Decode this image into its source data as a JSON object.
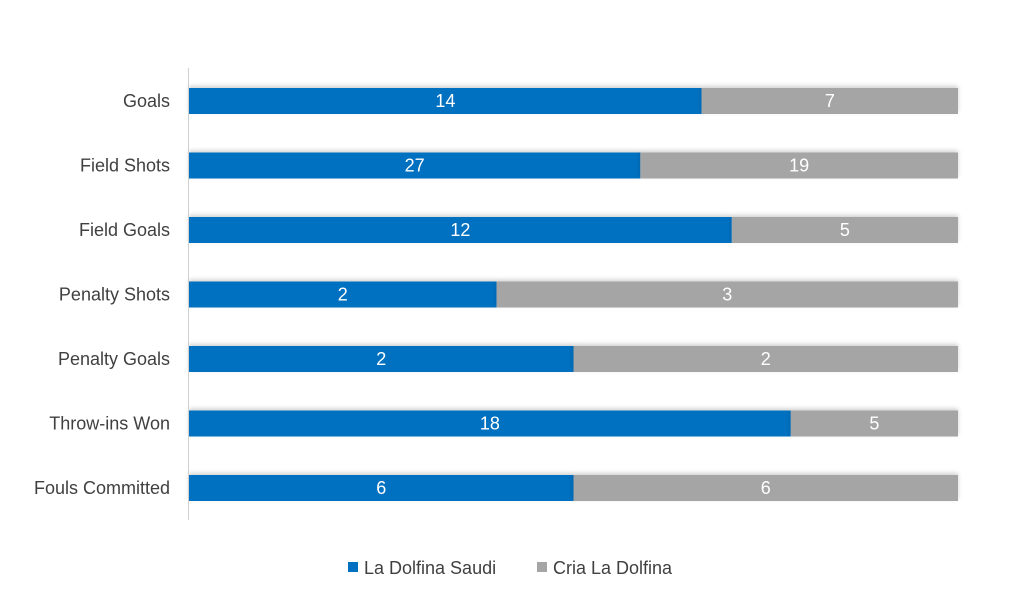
{
  "chart_data": {
    "type": "bar",
    "orientation": "horizontal",
    "stacking": "percent",
    "categories": [
      "Goals",
      "Field Shots",
      "Field Goals",
      "Penalty Shots",
      "Penalty Goals",
      "Throw-ins Won",
      "Fouls Committed"
    ],
    "series": [
      {
        "name": "La Dolfina Saudi",
        "values": [
          14,
          27,
          12,
          2,
          2,
          18,
          6
        ],
        "color": "#0070C0"
      },
      {
        "name": "Cria La Dolfina",
        "values": [
          7,
          19,
          5,
          3,
          2,
          5,
          6
        ],
        "color": "#A5A5A5"
      }
    ],
    "data_labels": true,
    "grid": false,
    "legend": "bottom"
  }
}
